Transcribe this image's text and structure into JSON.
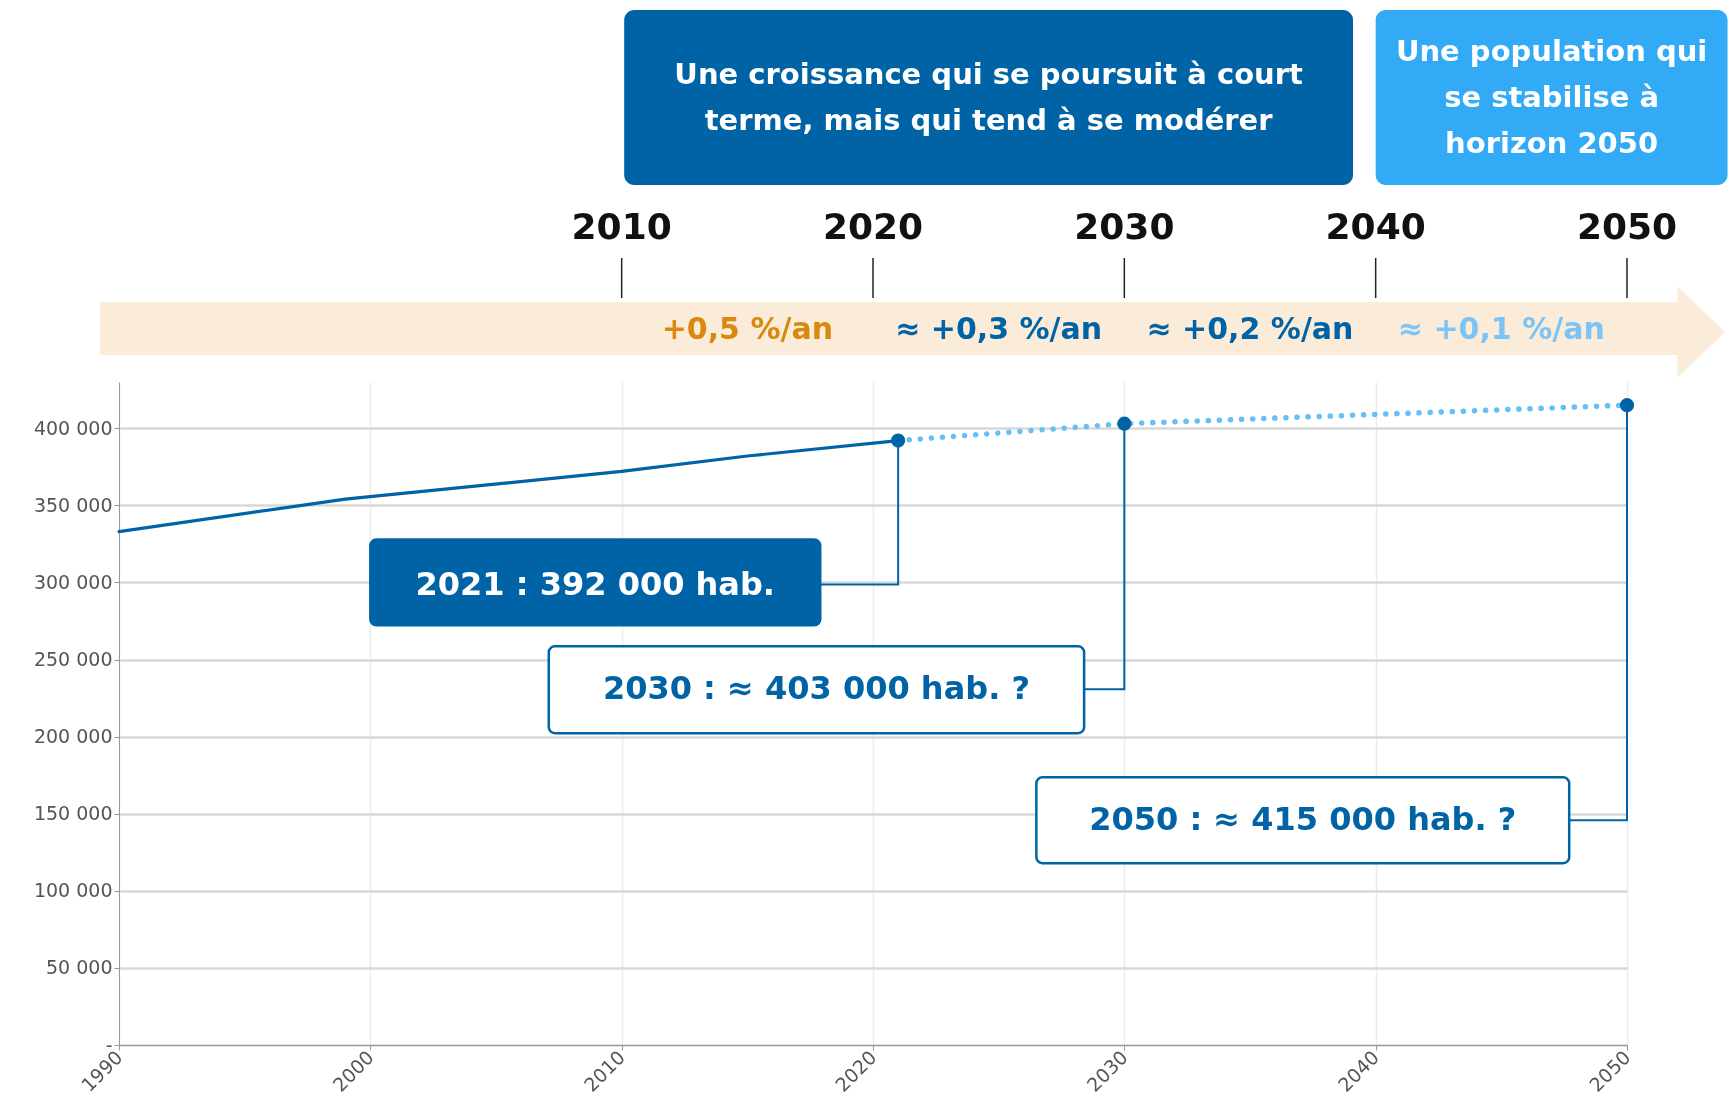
{
  "chart_data": {
    "type": "line",
    "xlim": [
      1990,
      2050
    ],
    "xticks": [
      1990,
      2000,
      2010,
      2020,
      2030,
      2040,
      2050
    ],
    "ylim": [
      0,
      430000
    ],
    "yticks": [
      {
        "value": 0,
        "label": "-"
      },
      {
        "value": 50000,
        "label": "50 000"
      },
      {
        "value": 100000,
        "label": "100 000"
      },
      {
        "value": 150000,
        "label": "150 000"
      },
      {
        "value": 200000,
        "label": "200 000"
      },
      {
        "value": 250000,
        "label": "250 000"
      },
      {
        "value": 300000,
        "label": "300 000"
      },
      {
        "value": 350000,
        "label": "350 000"
      },
      {
        "value": 400000,
        "label": "400 000"
      }
    ],
    "x2lim": [
      1990,
      2050
    ],
    "x2ticks": [
      2010,
      2020,
      2030,
      2040,
      2050
    ],
    "grid": true,
    "series": [
      {
        "color": "#0063a6",
        "line_style": "solid",
        "x": [
          1990,
          1999,
          2010,
          2015,
          2021
        ],
        "values": [
          333000,
          354000,
          372000,
          382000,
          392000
        ]
      },
      {
        "color": "#66bff5",
        "line_style": "dotted",
        "x": [
          2021,
          2030,
          2050
        ],
        "values": [
          392000,
          403000,
          415000
        ]
      },
      {
        "type": "scatter",
        "marker": "circle",
        "color": "#0063a6",
        "x": [
          2021,
          2030,
          2050
        ],
        "values": [
          392000,
          403000,
          415000
        ]
      }
    ],
    "annotations": [
      "Une croissance qui se poursuit à court terme, mais qui tend à se modérer",
      "Une population qui se stabilise à horizon 2050",
      "+0,5 %/an",
      "≈ +0,3 %/an",
      "≈ +0,2 %/an",
      "≈ +0,1 %/an",
      "2021 : 392 000 hab.",
      "2030 : ≈ 403 000 hab. ?",
      "2050 : ≈ 415 000 hab. ?"
    ]
  }
}
